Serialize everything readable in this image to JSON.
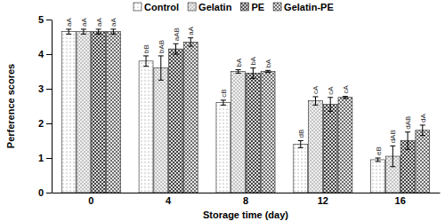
{
  "chart_data": {
    "type": "bar",
    "x_label": "Storage time (day)",
    "y_label": "Perference scores",
    "categories": [
      "0",
      "4",
      "8",
      "12",
      "16"
    ],
    "series": [
      {
        "name": "Control",
        "color": "#ffffff",
        "values": [
          4.65,
          3.8,
          2.6,
          1.4,
          0.95
        ],
        "errors": [
          0.07,
          0.15,
          0.07,
          0.1,
          0.05
        ],
        "letters": [
          "aA",
          "bB",
          "cB",
          "dB",
          "eB"
        ]
      },
      {
        "name": "Gelatin",
        "color": "#f0f0f0",
        "values": [
          4.65,
          3.6,
          3.5,
          2.65,
          1.05
        ],
        "errors": [
          0.07,
          0.35,
          0.05,
          0.12,
          0.3
        ],
        "letters": [
          "aA",
          "bAB",
          "bA",
          "cA",
          "dAB"
        ]
      },
      {
        "name": "PE",
        "color": "#dcdcdc",
        "values": [
          4.65,
          4.15,
          3.45,
          2.55,
          1.5
        ],
        "errors": [
          0.07,
          0.15,
          0.15,
          0.2,
          0.25
        ],
        "letters": [
          "aA",
          "aAB",
          "bA",
          "cA",
          "dAB"
        ]
      },
      {
        "name": "Gelatin-PE",
        "color": "#e8e8e8",
        "values": [
          4.65,
          4.35,
          3.5,
          2.75,
          1.8
        ],
        "errors": [
          0.07,
          0.12,
          0.03,
          0.03,
          0.15
        ],
        "letters": [
          "aA",
          "aA",
          "bA",
          "cA",
          "dA"
        ]
      }
    ],
    "ylim": [
      0,
      5
    ],
    "yticks": [
      0,
      1,
      2,
      3,
      4,
      5
    ],
    "grid": false,
    "legend": "top"
  }
}
